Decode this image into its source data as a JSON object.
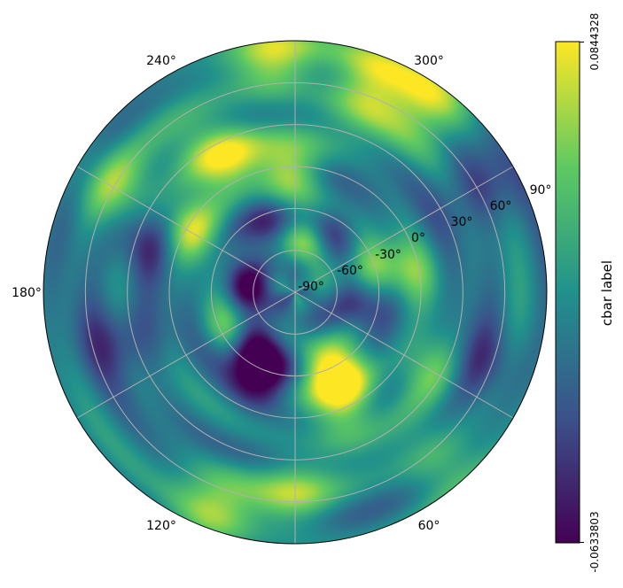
{
  "chart_data": {
    "type": "heatmap",
    "projection": "polar",
    "colormap": "viridis",
    "grid": true,
    "grid_color": "#b0b0b0",
    "theta_tick_labels": [
      "60°",
      "90°",
      "120°",
      "180°",
      "240°",
      "300°"
    ],
    "radial_tick_labels": [
      "-90°",
      "-60°",
      "-30°",
      "0°",
      "30°",
      "60°",
      "90°"
    ],
    "colorbar": {
      "label": "cbar label",
      "min": -0.0633803,
      "max": 0.0844328,
      "min_label": "-0.0633803",
      "max_label": "0.0844328",
      "colors": [
        "#440154",
        "#3b528b",
        "#21918c",
        "#5ec962",
        "#fde725"
      ]
    },
    "anomalies": [
      {
        "theta_deg": 182,
        "lat": -5,
        "value": 0.075
      },
      {
        "theta_deg": 205,
        "lat": 20,
        "value": 0.06
      },
      {
        "theta_deg": 240,
        "lat": 0,
        "value": 0.07
      },
      {
        "theta_deg": 300,
        "lat": -40,
        "value": 0.055
      },
      {
        "theta_deg": 328,
        "lat": -35,
        "value": -0.06
      },
      {
        "theta_deg": 340,
        "lat": -22,
        "value": -0.06
      },
      {
        "theta_deg": 313,
        "lat": -50,
        "value": -0.05
      },
      {
        "theta_deg": 262,
        "lat": -58,
        "value": -0.06
      },
      {
        "theta_deg": 200,
        "lat": -42,
        "value": -0.05
      },
      {
        "theta_deg": 168,
        "lat": -55,
        "value": 0.07
      },
      {
        "theta_deg": 150,
        "lat": -38,
        "value": -0.045
      },
      {
        "theta_deg": 110,
        "lat": -35,
        "value": 0.05
      },
      {
        "theta_deg": 78,
        "lat": -45,
        "value": -0.055
      },
      {
        "theta_deg": 22,
        "lat": -35,
        "value": 0.065
      },
      {
        "theta_deg": 30,
        "lat": -15,
        "value": 0.07
      },
      {
        "theta_deg": 20,
        "lat": 5,
        "value": 0.05
      },
      {
        "theta_deg": 250,
        "lat": 25,
        "value": -0.05
      },
      {
        "theta_deg": 285,
        "lat": 40,
        "value": -0.04
      },
      {
        "theta_deg": 215,
        "lat": 30,
        "value": 0.045
      },
      {
        "theta_deg": 100,
        "lat": -10,
        "value": 0.045
      },
      {
        "theta_deg": 60,
        "lat": 20,
        "value": 0.04
      },
      {
        "theta_deg": 0,
        "lat": 55,
        "value": 0.05
      },
      {
        "theta_deg": 160,
        "lat": 68,
        "value": 0.08
      },
      {
        "theta_deg": 145,
        "lat": 78,
        "value": 0.075
      },
      {
        "theta_deg": 185,
        "lat": 78,
        "value": 0.065
      },
      {
        "theta_deg": 120,
        "lat": 60,
        "value": -0.035
      },
      {
        "theta_deg": 240,
        "lat": 60,
        "value": 0.055
      },
      {
        "theta_deg": 340,
        "lat": 78,
        "value": 0.06
      },
      {
        "theta_deg": 40,
        "lat": 70,
        "value": 0.04
      },
      {
        "theta_deg": 70,
        "lat": 55,
        "value": -0.03
      }
    ]
  }
}
